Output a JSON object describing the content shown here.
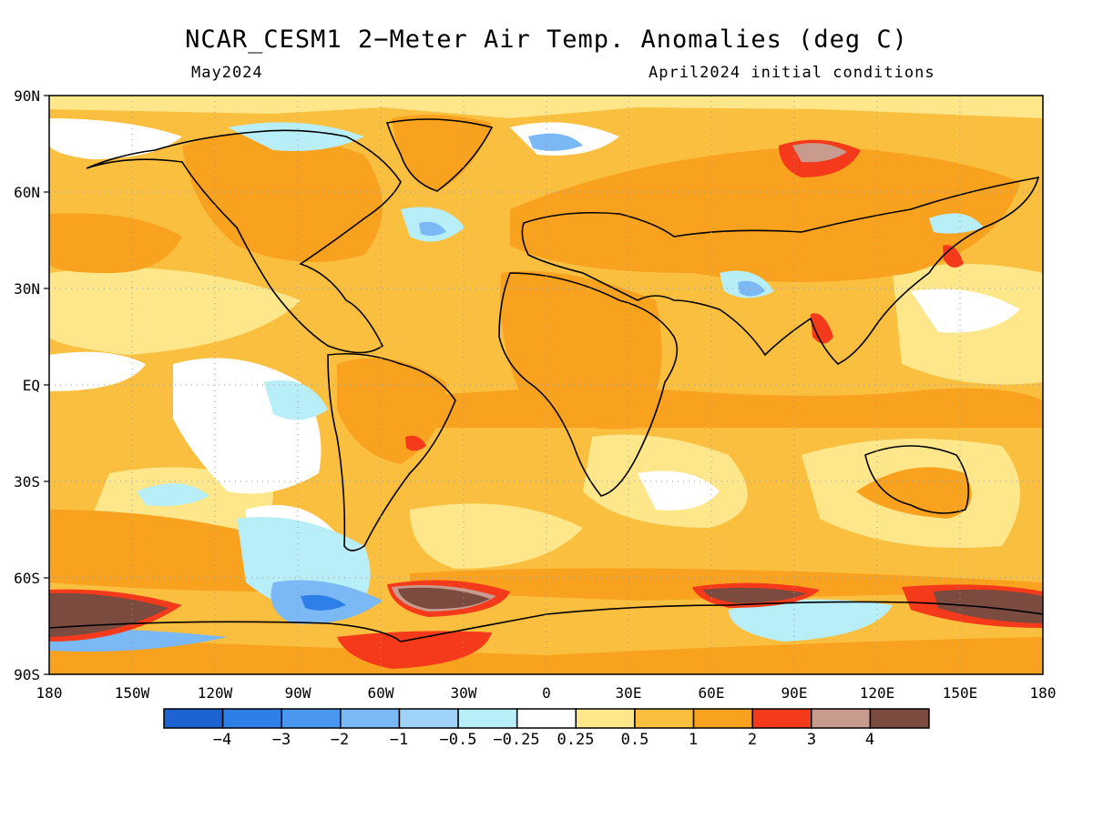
{
  "title": "NCAR_CESM1 2−Meter Air Temp. Anomalies (deg C)",
  "subtitle_left": "May2024",
  "subtitle_right": "April2024 initial conditions",
  "lat_labels": [
    "90N",
    "60N",
    "30N",
    "EQ",
    "30S",
    "60S",
    "90S"
  ],
  "lon_labels": [
    "180",
    "150W",
    "120W",
    "90W",
    "60W",
    "30W",
    "0",
    "30E",
    "60E",
    "90E",
    "120E",
    "150E",
    "180"
  ],
  "colorbar": {
    "colors": [
      "#1e63d2",
      "#2f7fe8",
      "#4a97f2",
      "#7ab8f6",
      "#9ed2f7",
      "#b8eef8",
      "#ffffff",
      "#fde78a",
      "#fbbf3f",
      "#f8a21f",
      "#f53a1b",
      "#c99a8e",
      "#7a4b3e"
    ],
    "labels": [
      "−4",
      "−3",
      "−2",
      "−1",
      "−0.5",
      "−0.25",
      "0.25",
      "0.5",
      "1",
      "2",
      "3",
      "4"
    ]
  }
}
